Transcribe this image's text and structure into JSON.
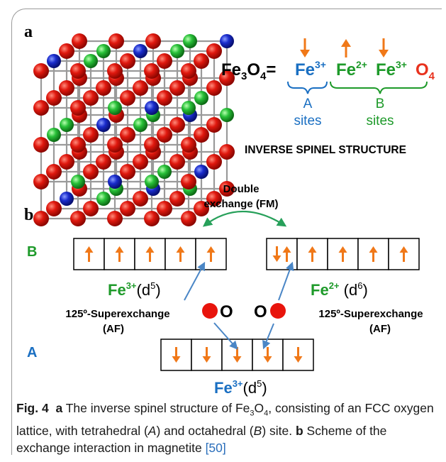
{
  "panel_a": {
    "label": "a",
    "formula_prefix": "Fe",
    "formula_sub3": "3",
    "formula_o": "O",
    "formula_sub4": "4",
    "formula_eq": "=",
    "ion1": "Fe",
    "ion1_charge": "3+",
    "ion2": "Fe",
    "ion2_charge": "2+",
    "ion3": "Fe",
    "ion3_charge": "3+",
    "ion_o": "O",
    "ion_o_sub": "4",
    "a_site_letter": "A",
    "a_site_word": "sites",
    "b_site_letter": "B",
    "b_site_word": "sites",
    "structure_title": "INVERSE SPINEL STRUCTURE"
  },
  "panel_b": {
    "label": "b",
    "row_b_label": "B",
    "row_a_label": "A",
    "double_exchange_line1": "Double",
    "double_exchange_line2": "exchange (FM)",
    "left_ion": "Fe",
    "left_ion_charge": "3+",
    "left_config": "(d",
    "left_config_sup": "5",
    "left_config_close": ")",
    "right_ion": "Fe",
    "right_ion_charge": "2+",
    "right_config": " (d",
    "right_config_sup": "6",
    "right_config_close": ")",
    "bottom_ion": "Fe",
    "bottom_ion_charge": "3+",
    "bottom_config": "(d",
    "bottom_config_sup": "5",
    "bottom_config_close": ")",
    "superexchange_left_1": "125º-Superexchange",
    "superexchange_left_2": "(AF)",
    "superexchange_right_1": "125º-Superexchange",
    "superexchange_right_2": "(AF)",
    "oxygen_left": "O",
    "oxygen_right": "O"
  },
  "caption": {
    "fig_label": "Fig. 4",
    "part_a": "a",
    "text_a1": " The inverse spinel structure of Fe",
    "text_a_sub1": "3",
    "text_a_o": "O",
    "text_a_sub2": "4",
    "text_a2": ", consisting of an FCC oxygen lattice, with tetrahedral (",
    "text_a_it1": "A",
    "text_a3": ") and octahedral (",
    "text_a_it2": "B",
    "text_a4": ") site. ",
    "part_b": "b",
    "text_b": " Scheme of the exchange interaction in magnetite ",
    "ref": "[50]"
  },
  "colors": {
    "fe_blue": "#1a6fc2",
    "fe_green": "#1e9a2a",
    "oxygen_red": "#e8321e",
    "spin_orange": "#f07818",
    "arrow_blue": "#4a86c6",
    "arrow_green": "#27a05a",
    "atom_red": "#d8140c",
    "atom_green": "#22b836",
    "atom_blue": "#1428c8"
  }
}
